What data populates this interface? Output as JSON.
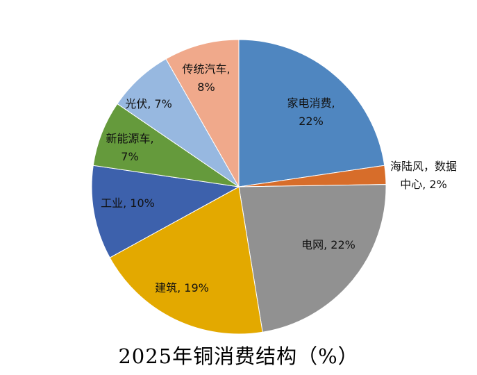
{
  "chart_data": {
    "type": "pie",
    "title": "2025年铜消费结构（%）",
    "start": "top",
    "direction": "clockwise",
    "slices": [
      {
        "name": "家电消费",
        "value": 22,
        "color": "#4F86C0"
      },
      {
        "name": "海陆风，数据中心",
        "value": 2,
        "color": "#D76D2A"
      },
      {
        "name": "电网",
        "value": 22,
        "color": "#919191"
      },
      {
        "name": "建筑",
        "value": 19,
        "color": "#E3A900"
      },
      {
        "name": "工业",
        "value": 10,
        "color": "#3D61AC"
      },
      {
        "name": "新能源车",
        "value": 7,
        "color": "#659A3C"
      },
      {
        "name": "光伏",
        "value": 7,
        "color": "#97B8E0"
      },
      {
        "name": "传统汽车",
        "value": 8,
        "color": "#F0A98B"
      }
    ]
  }
}
